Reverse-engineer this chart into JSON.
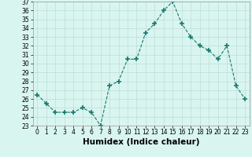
{
  "x": [
    0,
    1,
    2,
    3,
    4,
    5,
    6,
    7,
    8,
    9,
    10,
    11,
    12,
    13,
    14,
    15,
    16,
    17,
    18,
    19,
    20,
    21,
    22,
    23
  ],
  "y": [
    26.5,
    25.5,
    24.5,
    24.5,
    24.5,
    25.0,
    24.5,
    23.0,
    27.5,
    28.0,
    30.5,
    30.5,
    33.5,
    34.5,
    36.0,
    37.0,
    34.5,
    33.0,
    32.0,
    31.5,
    30.5,
    32.0,
    27.5,
    26.0
  ],
  "line_color": "#1a7a6e",
  "marker": "+",
  "marker_size": 4,
  "bg_color": "#d9f5f0",
  "grid_color": "#c0dcd8",
  "xlabel": "Humidex (Indice chaleur)",
  "ylim": [
    23,
    37
  ],
  "xlim": [
    -0.5,
    23.5
  ],
  "yticks": [
    23,
    24,
    25,
    26,
    27,
    28,
    29,
    30,
    31,
    32,
    33,
    34,
    35,
    36,
    37
  ],
  "xticks": [
    0,
    1,
    2,
    3,
    4,
    5,
    6,
    7,
    8,
    9,
    10,
    11,
    12,
    13,
    14,
    15,
    16,
    17,
    18,
    19,
    20,
    21,
    22,
    23
  ],
  "tick_fontsize": 5.5,
  "xlabel_fontsize": 7.5,
  "xlabel_fontweight": "bold"
}
